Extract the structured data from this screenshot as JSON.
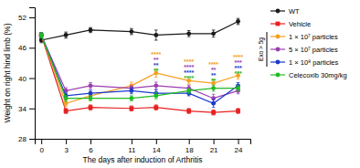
{
  "chart_data": {
    "type": "line",
    "xlabel": "The days after induction of Arthritis",
    "ylabel": "Weight on right hind limb (%)",
    "x": [
      0,
      3,
      6,
      11,
      14,
      18,
      21,
      24
    ],
    "xlim": [
      -0.8,
      25.5
    ],
    "xticks": [
      0,
      3,
      6,
      11,
      14,
      18,
      21,
      24
    ],
    "ylim": [
      28,
      54
    ],
    "yticks": [
      28,
      34,
      40,
      46,
      52
    ],
    "legend": "right",
    "series": [
      {
        "name": "WT",
        "color": "#1a1a1a",
        "marker": "circle",
        "values": [
          47.5,
          48.5,
          49.5,
          49.2,
          48.5,
          48.8,
          48.8,
          51.2
        ],
        "errors": [
          0.5,
          0.6,
          0.5,
          0.6,
          1.0,
          0.6,
          0.7,
          0.6
        ]
      },
      {
        "name": "Vehicle",
        "color": "#e82020",
        "marker": "square",
        "values": [
          48.5,
          33.5,
          34.2,
          34.0,
          34.2,
          33.5,
          33.2,
          33.5
        ],
        "errors": [
          0.5,
          0.5,
          0.5,
          0.5,
          0.5,
          0.5,
          0.5,
          0.5
        ]
      },
      {
        "name": "1 × 10⁷ particles",
        "color": "#f5a020",
        "marker": "circle",
        "values": [
          48.5,
          35.0,
          36.5,
          38.5,
          41.0,
          39.5,
          39.0,
          40.5
        ],
        "errors": [
          0.5,
          0.6,
          0.7,
          0.7,
          0.8,
          0.7,
          0.8,
          0.7
        ]
      },
      {
        "name": "5 × 10⁷ particles",
        "color": "#9b3db0",
        "marker": "circle",
        "values": [
          48.5,
          37.5,
          38.5,
          38.0,
          38.5,
          38.0,
          36.0,
          37.5
        ],
        "errors": [
          0.5,
          0.6,
          0.6,
          0.5,
          0.7,
          0.6,
          0.8,
          0.6
        ]
      },
      {
        "name": "1 × 10⁸ particles",
        "color": "#1a3acc",
        "marker": "circle",
        "values": [
          48.5,
          36.5,
          37.0,
          37.5,
          37.0,
          37.0,
          35.0,
          38.5
        ],
        "errors": [
          0.5,
          0.5,
          0.6,
          0.6,
          0.7,
          0.5,
          0.8,
          0.6
        ]
      },
      {
        "name": "Celecoxib 30mg/kg",
        "color": "#22bb22",
        "marker": "circle",
        "values": [
          48.5,
          36.0,
          36.0,
          36.0,
          36.5,
          37.5,
          38.0,
          38.0
        ],
        "errors": [
          0.5,
          0.6,
          0.5,
          0.5,
          0.6,
          0.5,
          0.6,
          0.6
        ]
      }
    ],
    "annotations": [
      {
        "text": "****",
        "x": 14,
        "series": 2
      },
      {
        "text": "**",
        "x": 14,
        "series": 3
      },
      {
        "text": "**",
        "x": 14,
        "series": 4
      },
      {
        "text": "**",
        "x": 14,
        "series": 5
      },
      {
        "text": "****",
        "x": 18,
        "series": 2
      },
      {
        "text": "****",
        "x": 18,
        "series": 3
      },
      {
        "text": "****",
        "x": 18,
        "series": 4
      },
      {
        "text": "****",
        "x": 18,
        "series": 5
      },
      {
        "text": "****",
        "x": 21,
        "series": 2
      },
      {
        "text": "**",
        "x": 21,
        "series": 3
      },
      {
        "text": "**",
        "x": 21,
        "series": 4
      },
      {
        "text": "**",
        "x": 21,
        "series": 5
      },
      {
        "text": "****",
        "x": 24,
        "series": 2
      },
      {
        "text": "***",
        "x": 24,
        "series": 3
      },
      {
        "text": "***",
        "x": 24,
        "series": 4
      },
      {
        "text": "***",
        "x": 24,
        "series": 5
      },
      {
        "text": "Exo > 5g",
        "series": [
          2,
          3,
          4
        ]
      }
    ]
  }
}
